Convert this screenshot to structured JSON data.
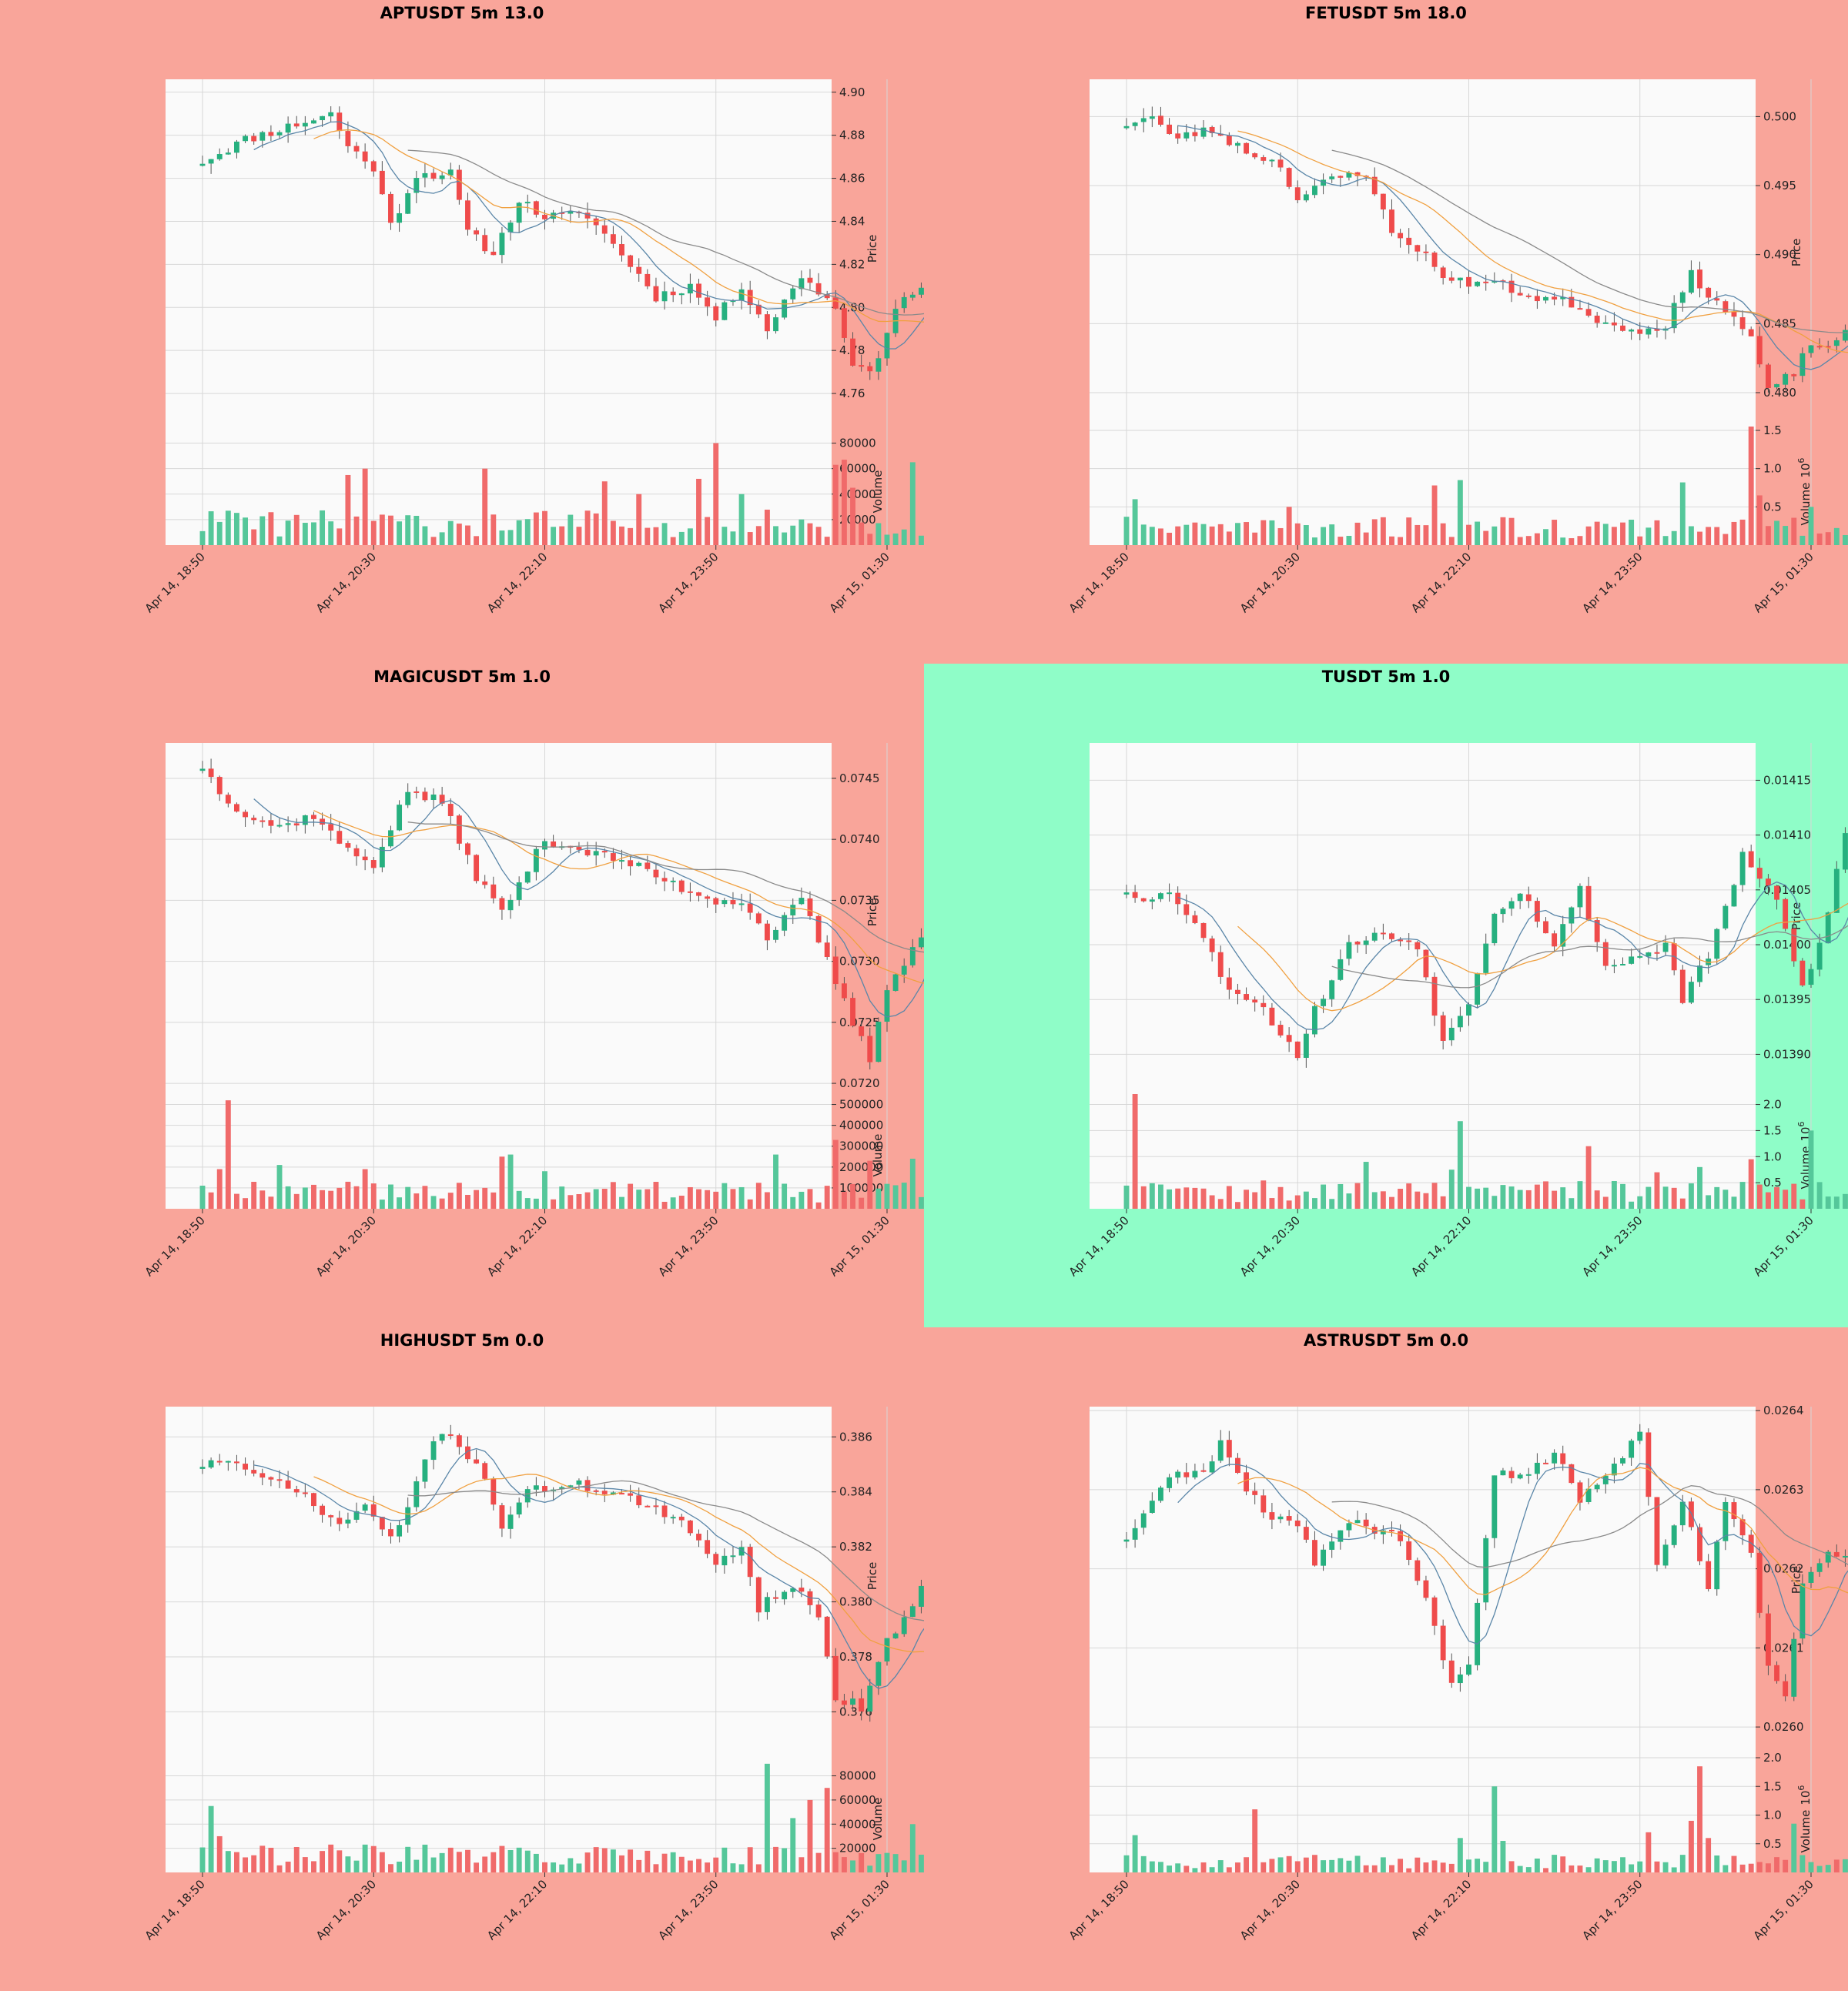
{
  "colors": {
    "background_loss": "#f9a59a",
    "background_gain": "#8ffdc8",
    "plot_face": "#fafafa",
    "grid": "#d7d7d7",
    "up_candle": "#26b07f",
    "down_candle": "#ef4b4b",
    "up_volume": "#55c79a",
    "down_volume": "#f06a6a",
    "ma_fast": "#5a86a8",
    "ma_mid": "#f0a040",
    "ma_slow": "#8a8a8a"
  },
  "chart_data": [
    {
      "type": "candlestick",
      "title": "APTUSDT 5m 13.0",
      "background": "loss",
      "ylabel": "Price",
      "volume_label": "Volume",
      "volume_exponent": "",
      "ylim": [
        4.745,
        4.906
      ],
      "price_ticks": [
        "4.76",
        "4.78",
        "4.80",
        "4.82",
        "4.84",
        "4.86",
        "4.88",
        "4.90"
      ],
      "vol_ylim": [
        0,
        90000
      ],
      "vol_ticks": [
        "20000",
        "40000",
        "60000",
        "80000"
      ],
      "vol_tick_values": [
        20000,
        40000,
        60000,
        80000
      ],
      "x_ticks": [
        "Apr 14, 18:50",
        "Apr 14, 20:30",
        "Apr 14, 22:10",
        "Apr 14, 23:50",
        "Apr 15, 01:30"
      ],
      "x_tick_index": [
        0,
        20,
        40,
        60,
        80
      ],
      "n_candles": 90,
      "anchors": [
        [
          0,
          4.868
        ],
        [
          5,
          4.878
        ],
        [
          10,
          4.884
        ],
        [
          15,
          4.89
        ],
        [
          17,
          4.875
        ],
        [
          20,
          4.865
        ],
        [
          22,
          4.838
        ],
        [
          25,
          4.862
        ],
        [
          29,
          4.862
        ],
        [
          31,
          4.835
        ],
        [
          34,
          4.825
        ],
        [
          37,
          4.85
        ],
        [
          40,
          4.842
        ],
        [
          45,
          4.843
        ],
        [
          50,
          4.82
        ],
        [
          53,
          4.805
        ],
        [
          57,
          4.81
        ],
        [
          60,
          4.795
        ],
        [
          63,
          4.81
        ],
        [
          66,
          4.79
        ],
        [
          70,
          4.815
        ],
        [
          74,
          4.8
        ],
        [
          76,
          4.775
        ],
        [
          78,
          4.768
        ],
        [
          81,
          4.8
        ],
        [
          84,
          4.81
        ],
        [
          86,
          4.8
        ],
        [
          89,
          4.782
        ]
      ],
      "vol_level": 18000,
      "vol_spikes": [
        [
          17,
          55000
        ],
        [
          19,
          60000
        ],
        [
          33,
          60000
        ],
        [
          47,
          50000
        ],
        [
          51,
          40000
        ],
        [
          58,
          52000
        ],
        [
          60,
          80000
        ],
        [
          63,
          40000
        ],
        [
          74,
          63000
        ],
        [
          75,
          67000
        ],
        [
          76,
          45000
        ],
        [
          83,
          65000
        ],
        [
          86,
          50000
        ],
        [
          88,
          63000
        ],
        [
          89,
          42000
        ]
      ],
      "seed": 11
    },
    {
      "type": "candlestick",
      "title": "FETUSDT 5m 18.0",
      "background": "loss",
      "ylabel": "Price",
      "volume_label": "Volume",
      "volume_exponent": "6",
      "ylim": [
        0.4776,
        0.5027
      ],
      "price_ticks": [
        "0.480",
        "0.485",
        "0.490",
        "0.495",
        "0.500"
      ],
      "vol_ylim": [
        0,
        1.5
      ],
      "vol_ticks": [
        "0.5",
        "1.0",
        "1.5"
      ],
      "vol_tick_values": [
        0.5,
        1.0,
        1.5
      ],
      "x_ticks": [
        "Apr 14, 18:50",
        "Apr 14, 20:30",
        "Apr 14, 22:10",
        "Apr 14, 23:50",
        "Apr 15, 01:30"
      ],
      "x_tick_index": [
        0,
        20,
        40,
        60,
        80
      ],
      "n_candles": 90,
      "anchors": [
        [
          0,
          0.4995
        ],
        [
          3,
          0.5
        ],
        [
          5,
          0.4985
        ],
        [
          10,
          0.499
        ],
        [
          14,
          0.4975
        ],
        [
          18,
          0.4965
        ],
        [
          20,
          0.494
        ],
        [
          24,
          0.4955
        ],
        [
          28,
          0.496
        ],
        [
          31,
          0.4915
        ],
        [
          34,
          0.4905
        ],
        [
          38,
          0.488
        ],
        [
          43,
          0.488
        ],
        [
          47,
          0.487
        ],
        [
          52,
          0.4865
        ],
        [
          56,
          0.485
        ],
        [
          61,
          0.4845
        ],
        [
          63,
          0.485
        ],
        [
          66,
          0.4885
        ],
        [
          70,
          0.486
        ],
        [
          73,
          0.484
        ],
        [
          75,
          0.48
        ],
        [
          78,
          0.4815
        ],
        [
          80,
          0.4835
        ],
        [
          83,
          0.4835
        ],
        [
          86,
          0.4855
        ],
        [
          89,
          0.487
        ]
      ],
      "vol_level": 0.25,
      "vol_spikes": [
        [
          1,
          0.6
        ],
        [
          19,
          0.5
        ],
        [
          36,
          0.78
        ],
        [
          39,
          0.85
        ],
        [
          65,
          0.82
        ],
        [
          73,
          1.55
        ],
        [
          74,
          0.65
        ],
        [
          80,
          0.5
        ],
        [
          85,
          0.78
        ],
        [
          86,
          0.6
        ]
      ],
      "seed": 23
    },
    {
      "type": "candlestick",
      "title": "MAGICUSDT 5m 1.0",
      "background": "loss",
      "ylabel": "Price",
      "volume_label": "Volume",
      "volume_exponent": "",
      "ylim": [
        0.07195,
        0.07479
      ],
      "price_ticks": [
        "0.0720",
        "0.0725",
        "0.0730",
        "0.0735",
        "0.0740",
        "0.0745"
      ],
      "vol_ylim": [
        0,
        550000
      ],
      "vol_ticks": [
        "100000",
        "200000",
        "300000",
        "400000",
        "500000"
      ],
      "vol_tick_values": [
        100000,
        200000,
        300000,
        400000,
        500000
      ],
      "x_ticks": [
        "Apr 14, 18:50",
        "Apr 14, 20:30",
        "Apr 14, 22:10",
        "Apr 14, 23:50",
        "Apr 15, 01:30"
      ],
      "x_tick_index": [
        0,
        20,
        40,
        60,
        80
      ],
      "n_candles": 90,
      "anchors": [
        [
          0,
          0.0746
        ],
        [
          2,
          0.0744
        ],
        [
          5,
          0.0742
        ],
        [
          9,
          0.0741
        ],
        [
          13,
          0.0742
        ],
        [
          17,
          0.0739
        ],
        [
          20,
          0.0738
        ],
        [
          24,
          0.0744
        ],
        [
          28,
          0.0743
        ],
        [
          32,
          0.0737
        ],
        [
          35,
          0.0734
        ],
        [
          40,
          0.074
        ],
        [
          45,
          0.0739
        ],
        [
          50,
          0.0738
        ],
        [
          56,
          0.0736
        ],
        [
          60,
          0.0735
        ],
        [
          63,
          0.0735
        ],
        [
          66,
          0.0732
        ],
        [
          70,
          0.0735
        ],
        [
          73,
          0.073
        ],
        [
          76,
          0.0725
        ],
        [
          78,
          0.0722
        ],
        [
          80,
          0.0728
        ],
        [
          84,
          0.0732
        ],
        [
          86,
          0.0733
        ],
        [
          89,
          0.073
        ]
      ],
      "vol_level": 85000,
      "vol_spikes": [
        [
          2,
          190000
        ],
        [
          3,
          520000
        ],
        [
          9,
          210000
        ],
        [
          19,
          190000
        ],
        [
          35,
          250000
        ],
        [
          36,
          260000
        ],
        [
          40,
          180000
        ],
        [
          67,
          260000
        ],
        [
          74,
          330000
        ],
        [
          78,
          230000
        ],
        [
          83,
          240000
        ],
        [
          86,
          200000
        ],
        [
          89,
          180000
        ]
      ],
      "seed": 37
    },
    {
      "type": "candlestick",
      "title": "TUSDT 5m 1.0",
      "background": "gain",
      "ylabel": "Price",
      "volume_label": "Volume",
      "volume_exponent": "6",
      "ylim": [
        0.013868,
        0.014184
      ],
      "price_ticks": [
        "0.01390",
        "0.01395",
        "0.01400",
        "0.01405",
        "0.01410",
        "0.01415"
      ],
      "vol_ylim": [
        0,
        2.2
      ],
      "vol_ticks": [
        "0.5",
        "1.0",
        "1.5",
        "2.0"
      ],
      "vol_tick_values": [
        0.5,
        1.0,
        1.5,
        2.0
      ],
      "x_ticks": [
        "Apr 14, 18:50",
        "Apr 14, 20:30",
        "Apr 14, 22:10",
        "Apr 14, 23:50",
        "Apr 15, 01:30"
      ],
      "x_tick_index": [
        0,
        20,
        40,
        60,
        80
      ],
      "n_candles": 90,
      "anchors": [
        [
          0,
          0.01405
        ],
        [
          3,
          0.01404
        ],
        [
          5,
          0.01405
        ],
        [
          8,
          0.01402
        ],
        [
          12,
          0.01396
        ],
        [
          15,
          0.01395
        ],
        [
          20,
          0.0139
        ],
        [
          22,
          0.01394
        ],
        [
          26,
          0.014
        ],
        [
          30,
          0.01401
        ],
        [
          34,
          0.014
        ],
        [
          37,
          0.01391
        ],
        [
          40,
          0.01395
        ],
        [
          43,
          0.01403
        ],
        [
          46,
          0.01405
        ],
        [
          50,
          0.014
        ],
        [
          53,
          0.01405
        ],
        [
          56,
          0.01398
        ],
        [
          60,
          0.01399
        ],
        [
          63,
          0.014
        ],
        [
          65,
          0.01395
        ],
        [
          68,
          0.01399
        ],
        [
          72,
          0.01408
        ],
        [
          76,
          0.01404
        ],
        [
          79,
          0.01396
        ],
        [
          81,
          0.014
        ],
        [
          84,
          0.0141
        ],
        [
          87,
          0.01415
        ],
        [
          89,
          0.01416
        ]
      ],
      "vol_level": 0.35,
      "vol_spikes": [
        [
          1,
          2.2
        ],
        [
          28,
          0.9
        ],
        [
          38,
          0.75
        ],
        [
          39,
          1.68
        ],
        [
          54,
          1.2
        ],
        [
          62,
          0.7
        ],
        [
          67,
          0.8
        ],
        [
          73,
          0.95
        ],
        [
          80,
          1.5
        ],
        [
          85,
          1.4
        ],
        [
          89,
          0.55
        ]
      ],
      "seed": 53
    },
    {
      "type": "candlestick",
      "title": "HIGHUSDT 5m 0.0",
      "background": "loss",
      "ylabel": "Price",
      "volume_label": "Volume",
      "volume_exponent": "",
      "ylim": [
        0.3745,
        0.3871
      ],
      "price_ticks": [
        "0.376",
        "0.378",
        "0.380",
        "0.382",
        "0.384",
        "0.386"
      ],
      "vol_ylim": [
        0,
        95000
      ],
      "vol_ticks": [
        "20000",
        "40000",
        "60000",
        "80000"
      ],
      "vol_tick_values": [
        20000,
        40000,
        60000,
        80000
      ],
      "x_ticks": [
        "Apr 14, 18:50",
        "Apr 14, 20:30",
        "Apr 14, 22:10",
        "Apr 14, 23:50",
        "Apr 15, 01:30"
      ],
      "x_tick_index": [
        0,
        20,
        40,
        60,
        80
      ],
      "n_candles": 90,
      "anchors": [
        [
          0,
          0.385
        ],
        [
          3,
          0.3852
        ],
        [
          6,
          0.3845
        ],
        [
          10,
          0.3843
        ],
        [
          13,
          0.3835
        ],
        [
          16,
          0.3828
        ],
        [
          19,
          0.3835
        ],
        [
          22,
          0.3822
        ],
        [
          24,
          0.3835
        ],
        [
          27,
          0.386
        ],
        [
          30,
          0.3858
        ],
        [
          33,
          0.3845
        ],
        [
          35,
          0.3828
        ],
        [
          38,
          0.384
        ],
        [
          43,
          0.3843
        ],
        [
          48,
          0.384
        ],
        [
          52,
          0.3835
        ],
        [
          56,
          0.3828
        ],
        [
          60,
          0.3815
        ],
        [
          63,
          0.382
        ],
        [
          65,
          0.3798
        ],
        [
          68,
          0.3805
        ],
        [
          70,
          0.3803
        ],
        [
          72,
          0.3795
        ],
        [
          74,
          0.3765
        ],
        [
          77,
          0.3762
        ],
        [
          80,
          0.3785
        ],
        [
          84,
          0.3805
        ],
        [
          86,
          0.3795
        ],
        [
          89,
          0.3791
        ]
      ],
      "vol_level": 15000,
      "vol_spikes": [
        [
          1,
          55000
        ],
        [
          2,
          30000
        ],
        [
          66,
          90000
        ],
        [
          69,
          45000
        ],
        [
          71,
          60000
        ],
        [
          73,
          70000
        ],
        [
          83,
          40000
        ],
        [
          86,
          40000
        ],
        [
          87,
          20000
        ]
      ],
      "seed": 71
    },
    {
      "type": "candlestick",
      "title": "ASTRUSDT 5m 0.0",
      "background": "loss",
      "ylabel": "Price",
      "volume_label": "Volume",
      "volume_exponent": "6",
      "ylim": [
        0.025967,
        0.026405
      ],
      "price_ticks": [
        "0.0260",
        "0.0261",
        "0.0262",
        "0.0263",
        "0.0264"
      ],
      "vol_ylim": [
        0,
        2.0
      ],
      "vol_ticks": [
        "0.5",
        "1.0",
        "1.5",
        "2.0"
      ],
      "vol_tick_values": [
        0.5,
        1.0,
        1.5,
        2.0
      ],
      "x_ticks": [
        "Apr 14, 18:50",
        "Apr 14, 20:30",
        "Apr 14, 22:10",
        "Apr 14, 23:50",
        "Apr 15, 01:30"
      ],
      "x_tick_index": [
        0,
        20,
        40,
        60,
        80
      ],
      "n_candles": 90,
      "anchors": [
        [
          0,
          0.02624
        ],
        [
          3,
          0.02628
        ],
        [
          5,
          0.02632
        ],
        [
          9,
          0.02632
        ],
        [
          11,
          0.02636
        ],
        [
          14,
          0.0263
        ],
        [
          17,
          0.02626
        ],
        [
          20,
          0.02626
        ],
        [
          22,
          0.02621
        ],
        [
          26,
          0.02626
        ],
        [
          29,
          0.02625
        ],
        [
          32,
          0.02624
        ],
        [
          35,
          0.02616
        ],
        [
          38,
          0.02605
        ],
        [
          40,
          0.02608
        ],
        [
          43,
          0.02632
        ],
        [
          47,
          0.02632
        ],
        [
          50,
          0.02635
        ],
        [
          53,
          0.02629
        ],
        [
          57,
          0.02633
        ],
        [
          60,
          0.02637
        ],
        [
          62,
          0.02621
        ],
        [
          65,
          0.02628
        ],
        [
          68,
          0.02618
        ],
        [
          70,
          0.02628
        ],
        [
          73,
          0.02622
        ],
        [
          75,
          0.02608
        ],
        [
          77,
          0.02604
        ],
        [
          79,
          0.02618
        ],
        [
          82,
          0.02622
        ],
        [
          85,
          0.02621
        ],
        [
          89,
          0.02619
        ]
      ],
      "vol_level": 0.2,
      "vol_spikes": [
        [
          1,
          0.65
        ],
        [
          15,
          1.1
        ],
        [
          39,
          0.6
        ],
        [
          43,
          1.5
        ],
        [
          44,
          0.55
        ],
        [
          61,
          0.7
        ],
        [
          66,
          0.9
        ],
        [
          67,
          1.85
        ],
        [
          68,
          0.6
        ],
        [
          78,
          0.85
        ]
      ],
      "seed": 89
    }
  ]
}
